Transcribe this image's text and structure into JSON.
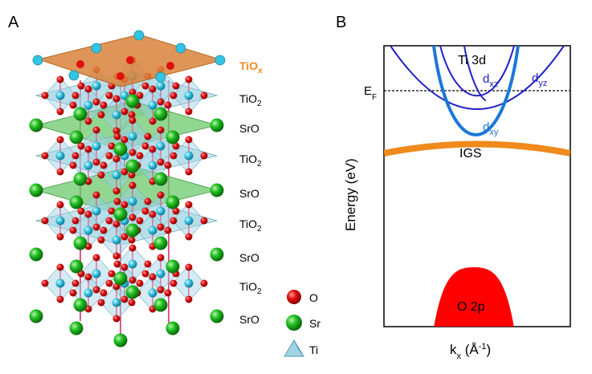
{
  "panel_a": {
    "label": "A",
    "top_layer": {
      "main": "TiO",
      "sub": "x"
    },
    "layers": [
      {
        "main": "TiO",
        "sub": "2"
      },
      {
        "main": "SrO",
        "sub": ""
      },
      {
        "main": "TiO",
        "sub": "2"
      },
      {
        "main": "SrO",
        "sub": ""
      },
      {
        "main": "TiO",
        "sub": "2"
      },
      {
        "main": "SrO",
        "sub": ""
      },
      {
        "main": "TiO",
        "sub": "2"
      },
      {
        "main": "SrO",
        "sub": ""
      }
    ],
    "legend": [
      {
        "label": "O",
        "color": "#e01010"
      },
      {
        "label": "Sr",
        "color": "#22c022"
      },
      {
        "label": "Ti",
        "color": "#7fd0e8"
      }
    ],
    "colors": {
      "tiox_label": "#f08a1c",
      "tio2_plane": "#9fd3dc",
      "sro_plane": "#6cc86c",
      "top_plane": "#d9823a"
    }
  },
  "panel_b": {
    "label": "B",
    "ylabel": "Energy (eV)",
    "xlabel": {
      "main": "k",
      "sub": "x",
      "unit_main": " (Å",
      "unit_sup": "-1",
      "unit_close": ")"
    },
    "fermi": {
      "main": "E",
      "sub": "F"
    },
    "ti3d_label": "Ti 3d",
    "dxz": {
      "main": "d",
      "sub": "xz"
    },
    "dyz": {
      "main": "d",
      "sub": "yz"
    },
    "dxy": {
      "main": "d",
      "sub": "xy"
    },
    "igs_label": "IGS",
    "o2p_label": "O 2p",
    "colors": {
      "dark_band": "#2020c8",
      "dxy_band": "#1a78d8",
      "igs": "#f08a1c",
      "o2p": "#ff0000",
      "fermi": "#000000"
    }
  }
}
